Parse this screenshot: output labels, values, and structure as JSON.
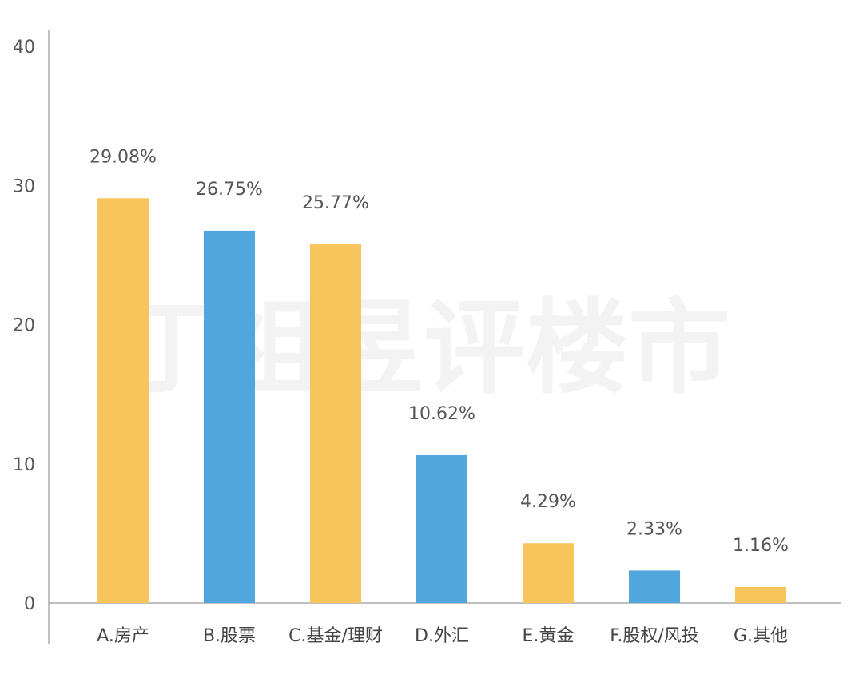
{
  "watermark": "丁祖昱评楼市",
  "colors": {
    "series_a": "#F8C45C",
    "series_b": "#52A6DE",
    "axis": "#999999"
  },
  "chart_data": {
    "type": "bar",
    "categories": [
      "A.房产",
      "B.股票",
      "C.基金/理财",
      "D.外汇",
      "E.黄金",
      "F.股权/风投",
      "G.其他"
    ],
    "values": [
      29.08,
      26.75,
      25.77,
      10.62,
      4.29,
      2.33,
      1.16
    ],
    "data_labels": [
      "29.08%",
      "26.75%",
      "25.77%",
      "10.62%",
      "4.29%",
      "2.33%",
      "1.16%"
    ],
    "bar_colors": [
      "#F8C45C",
      "#52A6DE",
      "#F8C45C",
      "#52A6DE",
      "#F8C45C",
      "#52A6DE",
      "#F8C45C"
    ],
    "title": "",
    "xlabel": "",
    "ylabel": "",
    "ylim": [
      0,
      40
    ],
    "yticks": [
      0,
      10,
      20,
      30,
      40
    ],
    "ytick_labels": [
      "0",
      "10",
      "20",
      "30",
      "40"
    ],
    "grid": false,
    "legend": "none"
  }
}
